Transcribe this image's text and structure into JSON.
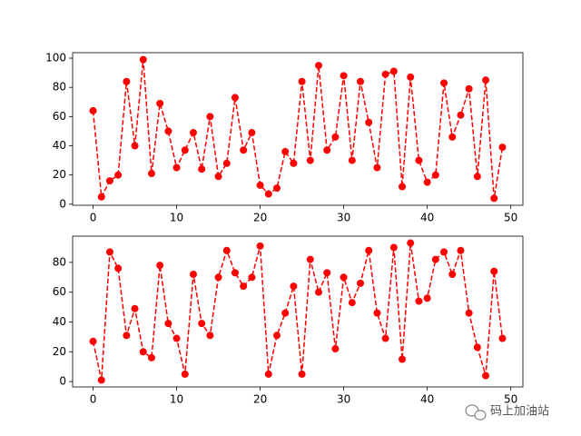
{
  "chart_data": [
    {
      "type": "line",
      "x": [
        0,
        1,
        2,
        3,
        4,
        5,
        6,
        7,
        8,
        9,
        10,
        11,
        12,
        13,
        14,
        15,
        16,
        17,
        18,
        19,
        20,
        21,
        22,
        23,
        24,
        25,
        26,
        27,
        28,
        29,
        30,
        31,
        32,
        33,
        34,
        35,
        36,
        37,
        38,
        39,
        40,
        41,
        42,
        43,
        44,
        45,
        46,
        47,
        48,
        49
      ],
      "series": [
        {
          "color": "#ff0000",
          "line_style": "dashed",
          "marker": "o",
          "values": [
            64,
            5,
            16,
            20,
            84,
            40,
            99,
            21,
            69,
            50,
            25,
            37,
            49,
            24,
            60,
            19,
            28,
            73,
            37,
            49,
            13,
            7,
            11,
            36,
            28,
            84,
            30,
            95,
            37,
            46,
            88,
            30,
            84,
            56,
            25,
            89,
            91,
            12,
            87,
            30,
            15,
            20,
            83,
            46,
            61,
            79,
            19,
            85,
            4,
            39
          ]
        }
      ],
      "xlim": [
        -2.45,
        51.45
      ],
      "xticks": [
        0,
        10,
        20,
        30,
        40,
        50
      ],
      "ylim": [
        -0.75,
        103.75
      ],
      "yticks": [
        0,
        20,
        40,
        60,
        80,
        100
      ]
    },
    {
      "type": "line",
      "x": [
        0,
        1,
        2,
        3,
        4,
        5,
        6,
        7,
        8,
        9,
        10,
        11,
        12,
        13,
        14,
        15,
        16,
        17,
        18,
        19,
        20,
        21,
        22,
        23,
        24,
        25,
        26,
        27,
        28,
        29,
        30,
        31,
        32,
        33,
        34,
        35,
        36,
        37,
        38,
        39,
        40,
        41,
        42,
        43,
        44,
        45,
        46,
        47,
        48,
        49
      ],
      "series": [
        {
          "color": "#ff0000",
          "line_style": "dashed",
          "marker": "o",
          "values": [
            27,
            1,
            87,
            76,
            31,
            49,
            20,
            16,
            78,
            39,
            29,
            5,
            72,
            39,
            31,
            70,
            88,
            73,
            64,
            70,
            91,
            5,
            31,
            46,
            64,
            5,
            82,
            60,
            73,
            22,
            70,
            53,
            66,
            88,
            46,
            29,
            90,
            15,
            93,
            54,
            56,
            82,
            87,
            72,
            88,
            46,
            23,
            4,
            74,
            29
          ]
        }
      ],
      "xlim": [
        -2.45,
        51.45
      ],
      "xticks": [
        0,
        10,
        20,
        30,
        40,
        50
      ],
      "ylim": [
        -3.6,
        97.6
      ],
      "yticks": [
        0,
        20,
        40,
        60,
        80
      ]
    }
  ],
  "watermark": "码上加油站"
}
